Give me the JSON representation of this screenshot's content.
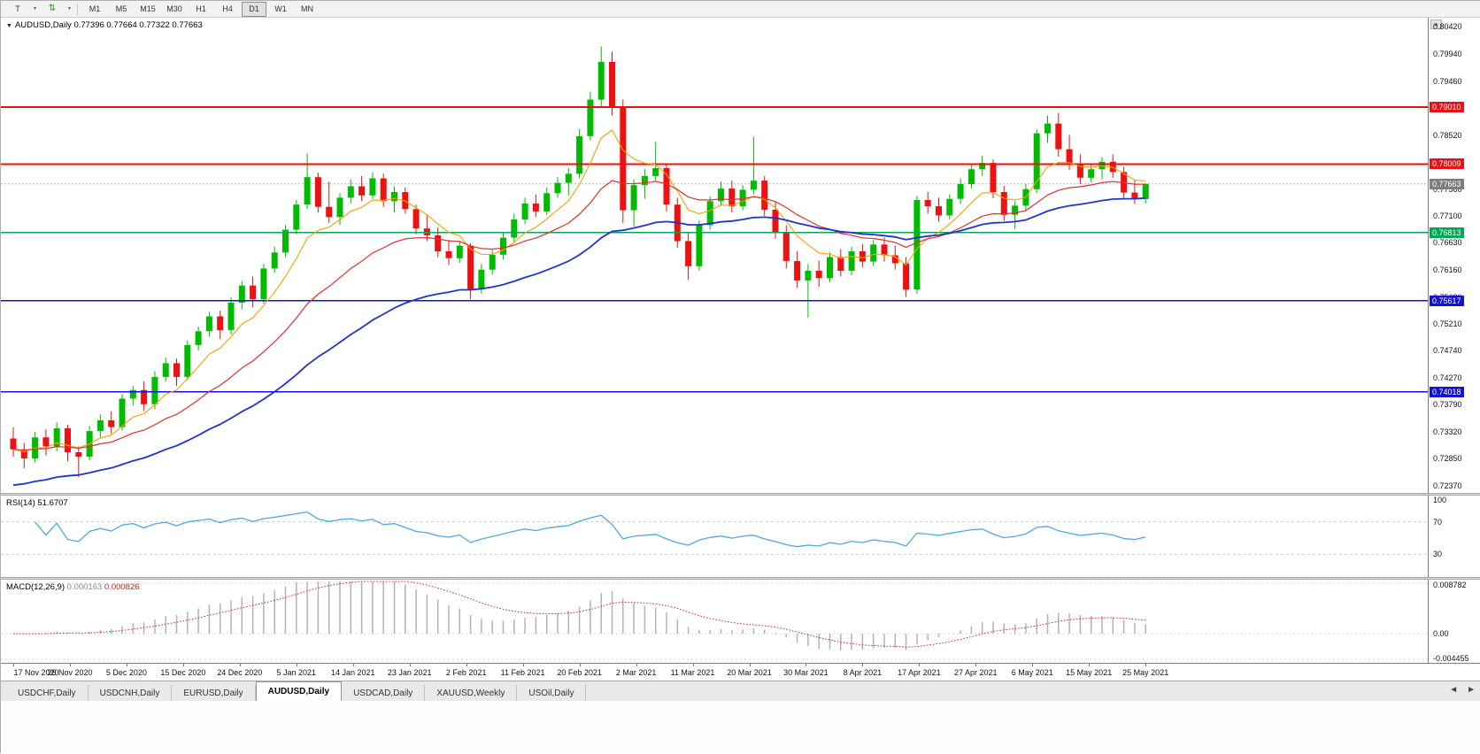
{
  "toolbar": {
    "tick": "T",
    "timeframes": [
      "M1",
      "M5",
      "M15",
      "M30",
      "H1",
      "H4",
      "D1",
      "W1",
      "MN"
    ],
    "active": "D1"
  },
  "icons": {
    "collapse": "▼",
    "dropdown": "▼",
    "updown": "⇅",
    "scroll_up": "▲",
    "tab_prev": "◄",
    "tab_next": "►"
  },
  "price_pane": {
    "title": "AUDUSD,Daily  0.77396 0.77664 0.77322 0.77663"
  },
  "rsi_pane": {
    "label": "RSI(14) 51.6707"
  },
  "macd_pane": {
    "name": "MACD(12,26,9)",
    "main_value": "0.000163",
    "signal_value": "0.000826"
  },
  "tabs": {
    "items": [
      "USDCHF,Daily",
      "USDCNH,Daily",
      "EURUSD,Daily",
      "AUDUSD,Daily",
      "USDCAD,Daily",
      "XAUUSD,Weekly",
      "USOil,Daily"
    ],
    "active_index": 3
  },
  "chart_data": {
    "type": "candlestick",
    "title": "AUDUSD,Daily",
    "y_range": [
      0.7237,
      0.8042
    ],
    "y_axis_labels": [
      "0.80420",
      "0.79940",
      "0.79460",
      "0.78980",
      "0.78520",
      "0.78040",
      "0.77560",
      "0.77100",
      "0.76630",
      "0.76160",
      "0.75680",
      "0.75210",
      "0.74740",
      "0.74270",
      "0.73790",
      "0.73320",
      "0.72850",
      "0.72370"
    ],
    "x_labels": [
      "17 Nov 2020",
      "26 Nov 2020",
      "5 Dec 2020",
      "15 Dec 2020",
      "24 Dec 2020",
      "5 Jan 2021",
      "14 Jan 2021",
      "23 Jan 2021",
      "2 Feb 2021",
      "11 Feb 2021",
      "20 Feb 2021",
      "2 Mar 2021",
      "11 Mar 2021",
      "20 Mar 2021",
      "30 Mar 2021",
      "8 Apr 2021",
      "17 Apr 2021",
      "27 Apr 2021",
      "6 May 2021",
      "15 May 2021",
      "25 May 2021"
    ],
    "up_color": "#00bb00",
    "down_color": "#ee1111",
    "current_price": {
      "value": 0.77663,
      "label": "0.77663",
      "color": "#7d7d7d"
    },
    "hlines": [
      {
        "price": 0.7901,
        "label": "0.79010",
        "color": "#e81010"
      },
      {
        "price": 0.78009,
        "label": "0.78009",
        "color": "#e81010"
      },
      {
        "price": 0.76813,
        "label": "0.76813",
        "color": "#00a650"
      },
      {
        "price": 0.75617,
        "label": "0.75617",
        "color": "#1212d0"
      },
      {
        "price": 0.74018,
        "label": "0.74018",
        "color": "#1212d0"
      }
    ],
    "moving_averages": [
      {
        "name": "ma-fast",
        "color": "#f0a200",
        "alpha": 0.25,
        "seed": null,
        "width": 1.1
      },
      {
        "name": "ma-mid",
        "color": "#e03030",
        "alpha": 0.1,
        "seed": null,
        "width": 1.2
      },
      {
        "name": "ma-slow",
        "color": "#2233cc",
        "alpha": 0.05,
        "seed": 0.7235,
        "width": 1.8
      }
    ],
    "indicators": {
      "rsi": {
        "label": "RSI(14) 51.6707",
        "period": 14,
        "levels": [
          100,
          70,
          30
        ],
        "color": "#51a8dc"
      },
      "macd": {
        "label": "MACD(12,26,9) 0.000163 0.000826",
        "fast": 12,
        "slow": 26,
        "signal": 9,
        "range": [
          -0.004455,
          0.008782
        ],
        "axis_labels": [
          "0.008782",
          "0.00",
          "-0.004455"
        ],
        "hist_color": "#b2b2b2",
        "signal_color": "#d02020"
      }
    },
    "candles": [
      [
        0.732,
        0.734,
        0.7288,
        0.7301
      ],
      [
        0.7301,
        0.7312,
        0.7268,
        0.7285
      ],
      [
        0.7285,
        0.7332,
        0.7278,
        0.7322
      ],
      [
        0.7322,
        0.7336,
        0.729,
        0.7306
      ],
      [
        0.7306,
        0.7348,
        0.7298,
        0.7338
      ],
      [
        0.7338,
        0.7344,
        0.728,
        0.7296
      ],
      [
        0.7296,
        0.7306,
        0.7252,
        0.7288
      ],
      [
        0.7288,
        0.7342,
        0.7282,
        0.7333
      ],
      [
        0.7333,
        0.7362,
        0.732,
        0.7352
      ],
      [
        0.7352,
        0.7368,
        0.7328,
        0.734
      ],
      [
        0.734,
        0.7398,
        0.7334,
        0.739
      ],
      [
        0.739,
        0.7412,
        0.7378,
        0.7405
      ],
      [
        0.7405,
        0.742,
        0.7368,
        0.738
      ],
      [
        0.738,
        0.7438,
        0.7372,
        0.7428
      ],
      [
        0.7428,
        0.7462,
        0.742,
        0.7452
      ],
      [
        0.7452,
        0.746,
        0.7412,
        0.7428
      ],
      [
        0.7428,
        0.7492,
        0.7422,
        0.7484
      ],
      [
        0.7484,
        0.7516,
        0.7474,
        0.7508
      ],
      [
        0.7508,
        0.7542,
        0.7498,
        0.7534
      ],
      [
        0.7534,
        0.7544,
        0.7494,
        0.751
      ],
      [
        0.751,
        0.7568,
        0.7502,
        0.7558
      ],
      [
        0.7558,
        0.7596,
        0.7546,
        0.7588
      ],
      [
        0.7588,
        0.7604,
        0.755,
        0.7564
      ],
      [
        0.7564,
        0.7626,
        0.7556,
        0.7618
      ],
      [
        0.7618,
        0.7656,
        0.761,
        0.7646
      ],
      [
        0.7646,
        0.7694,
        0.7638,
        0.7686
      ],
      [
        0.7686,
        0.7738,
        0.7678,
        0.773
      ],
      [
        0.773,
        0.782,
        0.7722,
        0.7778
      ],
      [
        0.7778,
        0.7786,
        0.7716,
        0.7726
      ],
      [
        0.7726,
        0.777,
        0.7698,
        0.7708
      ],
      [
        0.7708,
        0.775,
        0.7694,
        0.7742
      ],
      [
        0.7742,
        0.7774,
        0.7732,
        0.7762
      ],
      [
        0.7762,
        0.778,
        0.7736,
        0.7746
      ],
      [
        0.7746,
        0.7786,
        0.774,
        0.7776
      ],
      [
        0.7776,
        0.7784,
        0.7726,
        0.7736
      ],
      [
        0.7736,
        0.7762,
        0.7716,
        0.7752
      ],
      [
        0.7752,
        0.776,
        0.7714,
        0.7722
      ],
      [
        0.7722,
        0.773,
        0.7678,
        0.7688
      ],
      [
        0.7688,
        0.7712,
        0.7666,
        0.7676
      ],
      [
        0.7676,
        0.769,
        0.7638,
        0.7648
      ],
      [
        0.7648,
        0.7668,
        0.7624,
        0.7636
      ],
      [
        0.7636,
        0.7666,
        0.7628,
        0.7658
      ],
      [
        0.7658,
        0.7662,
        0.7564,
        0.7582
      ],
      [
        0.7582,
        0.7626,
        0.7574,
        0.7616
      ],
      [
        0.7616,
        0.765,
        0.7608,
        0.7642
      ],
      [
        0.7642,
        0.7682,
        0.7634,
        0.7672
      ],
      [
        0.7672,
        0.7714,
        0.7664,
        0.7704
      ],
      [
        0.7704,
        0.7742,
        0.7696,
        0.7732
      ],
      [
        0.7732,
        0.7748,
        0.7708,
        0.7718
      ],
      [
        0.7718,
        0.776,
        0.7712,
        0.775
      ],
      [
        0.775,
        0.7778,
        0.7742,
        0.7768
      ],
      [
        0.7768,
        0.7794,
        0.7746,
        0.7784
      ],
      [
        0.7784,
        0.7862,
        0.7776,
        0.785
      ],
      [
        0.785,
        0.7928,
        0.7842,
        0.7914
      ],
      [
        0.7914,
        0.8007,
        0.7902,
        0.798
      ],
      [
        0.798,
        0.7998,
        0.7886,
        0.7902
      ],
      [
        0.7902,
        0.7914,
        0.7698,
        0.772
      ],
      [
        0.772,
        0.7774,
        0.7692,
        0.7764
      ],
      [
        0.7764,
        0.7792,
        0.774,
        0.778
      ],
      [
        0.778,
        0.784,
        0.7772,
        0.7794
      ],
      [
        0.7794,
        0.7802,
        0.7718,
        0.773
      ],
      [
        0.773,
        0.7742,
        0.7654,
        0.7666
      ],
      [
        0.7666,
        0.768,
        0.7598,
        0.7622
      ],
      [
        0.7622,
        0.7702,
        0.7614,
        0.7694
      ],
      [
        0.7694,
        0.7744,
        0.7686,
        0.7736
      ],
      [
        0.7736,
        0.777,
        0.7728,
        0.7758
      ],
      [
        0.7758,
        0.7772,
        0.7716,
        0.7727
      ],
      [
        0.7727,
        0.7764,
        0.772,
        0.7756
      ],
      [
        0.7756,
        0.7849,
        0.7748,
        0.7772
      ],
      [
        0.7772,
        0.778,
        0.771,
        0.7721
      ],
      [
        0.7721,
        0.7734,
        0.767,
        0.7681
      ],
      [
        0.7681,
        0.7694,
        0.7618,
        0.7631
      ],
      [
        0.7631,
        0.7648,
        0.7584,
        0.7597
      ],
      [
        0.7597,
        0.7626,
        0.7532,
        0.7614
      ],
      [
        0.7614,
        0.7632,
        0.7586,
        0.7601
      ],
      [
        0.7601,
        0.7646,
        0.7594,
        0.7638
      ],
      [
        0.7638,
        0.7652,
        0.7604,
        0.7614
      ],
      [
        0.7614,
        0.7656,
        0.7606,
        0.7648
      ],
      [
        0.7648,
        0.7661,
        0.762,
        0.763
      ],
      [
        0.763,
        0.7668,
        0.7622,
        0.766
      ],
      [
        0.766,
        0.7672,
        0.763,
        0.7641
      ],
      [
        0.7641,
        0.7658,
        0.7616,
        0.7627
      ],
      [
        0.7627,
        0.7638,
        0.7568,
        0.7581
      ],
      [
        0.7581,
        0.7745,
        0.7574,
        0.7738
      ],
      [
        0.7738,
        0.7752,
        0.7714,
        0.7727
      ],
      [
        0.7727,
        0.7742,
        0.77,
        0.7711
      ],
      [
        0.7711,
        0.7748,
        0.7704,
        0.774
      ],
      [
        0.774,
        0.7776,
        0.7731,
        0.7766
      ],
      [
        0.7766,
        0.7802,
        0.7758,
        0.7792
      ],
      [
        0.7792,
        0.7816,
        0.778,
        0.7803
      ],
      [
        0.7803,
        0.7809,
        0.7741,
        0.7752
      ],
      [
        0.7752,
        0.7763,
        0.7701,
        0.7712
      ],
      [
        0.7712,
        0.7736,
        0.7687,
        0.7728
      ],
      [
        0.7728,
        0.7766,
        0.7719,
        0.7757
      ],
      [
        0.7757,
        0.7862,
        0.775,
        0.7855
      ],
      [
        0.7855,
        0.7886,
        0.7838,
        0.7872
      ],
      [
        0.7872,
        0.7891,
        0.7814,
        0.7827
      ],
      [
        0.7827,
        0.7852,
        0.7791,
        0.7802
      ],
      [
        0.7802,
        0.7818,
        0.7766,
        0.7777
      ],
      [
        0.7777,
        0.7801,
        0.7769,
        0.7792
      ],
      [
        0.7792,
        0.7813,
        0.7774,
        0.7805
      ],
      [
        0.7805,
        0.7818,
        0.7777,
        0.7787
      ],
      [
        0.7787,
        0.7796,
        0.7741,
        0.7751
      ],
      [
        0.7751,
        0.7772,
        0.7731,
        0.774
      ],
      [
        0.77396,
        0.77664,
        0.77322,
        0.77663
      ]
    ]
  }
}
